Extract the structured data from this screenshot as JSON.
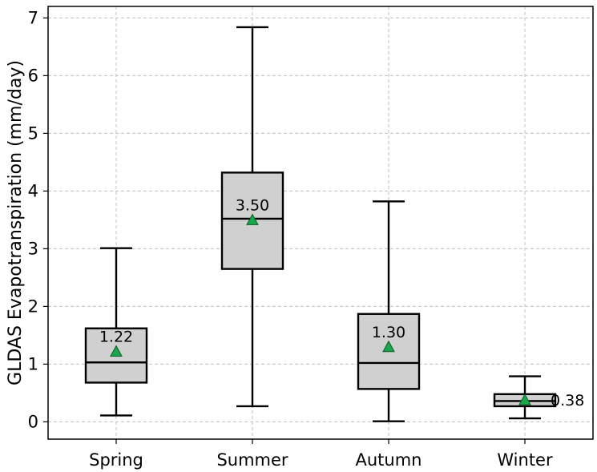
{
  "chart_data": {
    "type": "box",
    "title": "",
    "xlabel": "",
    "ylabel": "GLDAS Evapotranspiration (mm/day)",
    "ylim": [
      -0.3,
      7.2
    ],
    "yticks": [
      0,
      1,
      2,
      3,
      4,
      5,
      6,
      7
    ],
    "grid": true,
    "categories": [
      "Spring",
      "Summer",
      "Autumn",
      "Winter"
    ],
    "boxes": [
      {
        "category": "Spring",
        "whisker_low": 0.11,
        "q1": 0.68,
        "median": 1.03,
        "q3": 1.62,
        "whisker_high": 3.01,
        "mean": 1.22,
        "mean_label": "1.22"
      },
      {
        "category": "Summer",
        "whisker_low": 0.27,
        "q1": 2.65,
        "median": 3.52,
        "q3": 4.32,
        "whisker_high": 6.84,
        "mean": 3.5,
        "mean_label": "3.50"
      },
      {
        "category": "Autumn",
        "whisker_low": 0.01,
        "q1": 0.57,
        "median": 1.02,
        "q3": 1.87,
        "whisker_high": 3.82,
        "mean": 1.3,
        "mean_label": "1.30"
      },
      {
        "category": "Winter",
        "whisker_low": 0.06,
        "q1": 0.27,
        "median": 0.36,
        "q3": 0.48,
        "whisker_high": 0.79,
        "mean": 0.38,
        "mean_label": "0.38"
      }
    ],
    "colors": {
      "box_fill": "#d0d0d0",
      "mean_marker": "#1aa64a",
      "grid": "#c0c0c0"
    }
  }
}
